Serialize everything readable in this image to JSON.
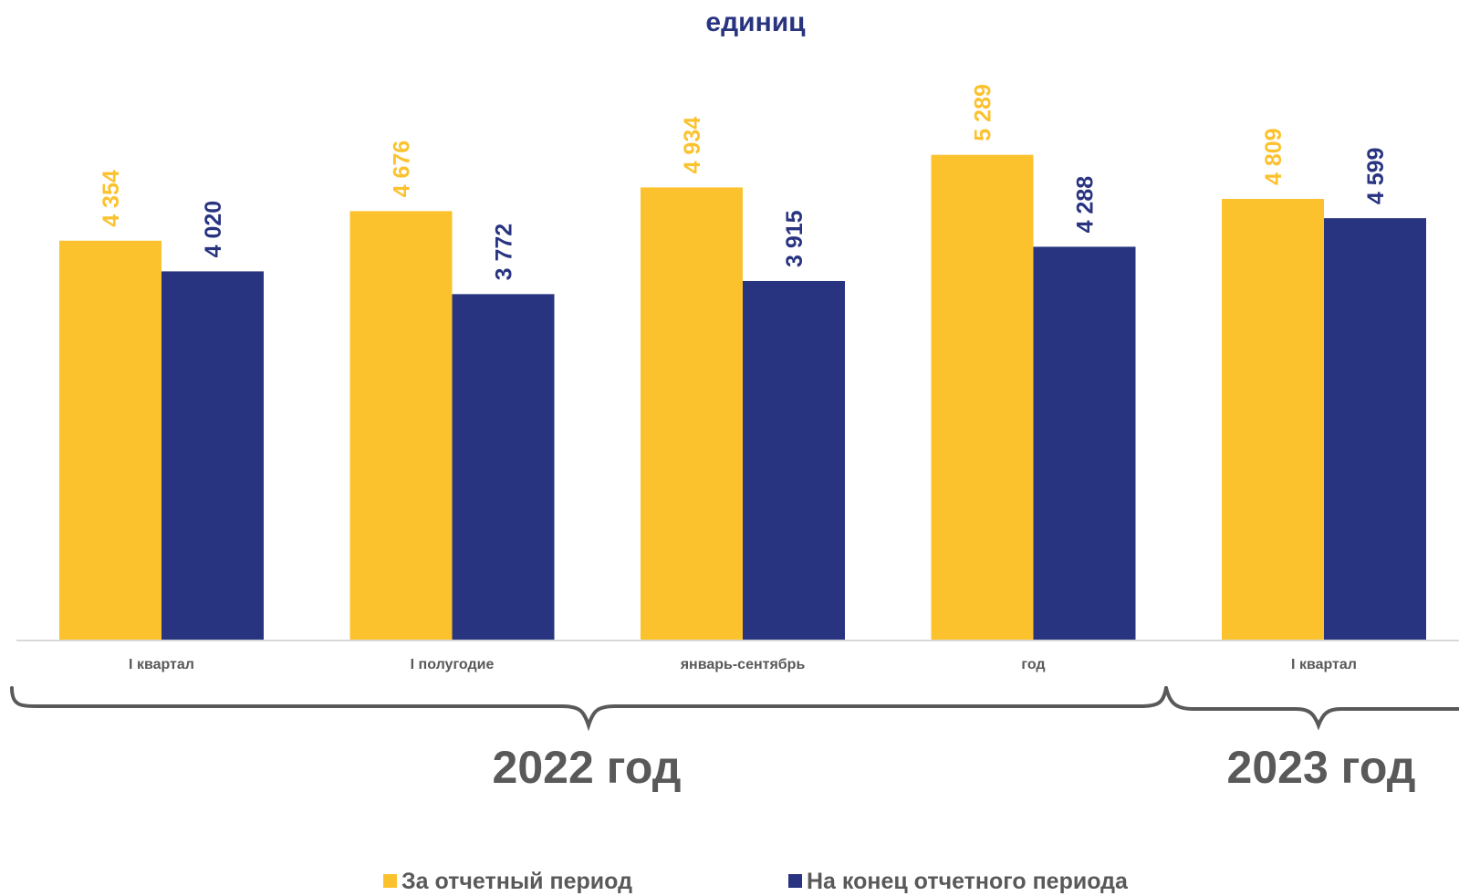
{
  "chart_data": {
    "type": "bar",
    "title": "единиц",
    "categories": [
      "I квартал",
      "I полугодие",
      "январь-сентябрь",
      "год",
      "I квартал"
    ],
    "groups": [
      {
        "label": "2022 год",
        "categories": [
          0,
          1,
          2,
          3
        ]
      },
      {
        "label": "2023 год",
        "categories": [
          4
        ]
      }
    ],
    "series": [
      {
        "name": "За отчетный период",
        "values": [
          4354,
          4676,
          4934,
          5289,
          4809
        ],
        "value_labels": [
          "4 354",
          "4 676",
          "4 934",
          "5 289",
          "4 809"
        ],
        "color": "#FCC22E"
      },
      {
        "name": "На конец отчетного периода",
        "values": [
          4020,
          3772,
          3915,
          4288,
          4599
        ],
        "value_labels": [
          "4 020",
          "3 772",
          "3 915",
          "4 288",
          "4 599"
        ],
        "color": "#283480"
      }
    ],
    "ylim": [
      0,
      6200
    ],
    "grid": false,
    "legend_position": "bottom"
  },
  "colors": {
    "title": "#283480",
    "axis_text": "#595959",
    "bracket": "#595959",
    "axis_line": "#D9D9D9"
  }
}
